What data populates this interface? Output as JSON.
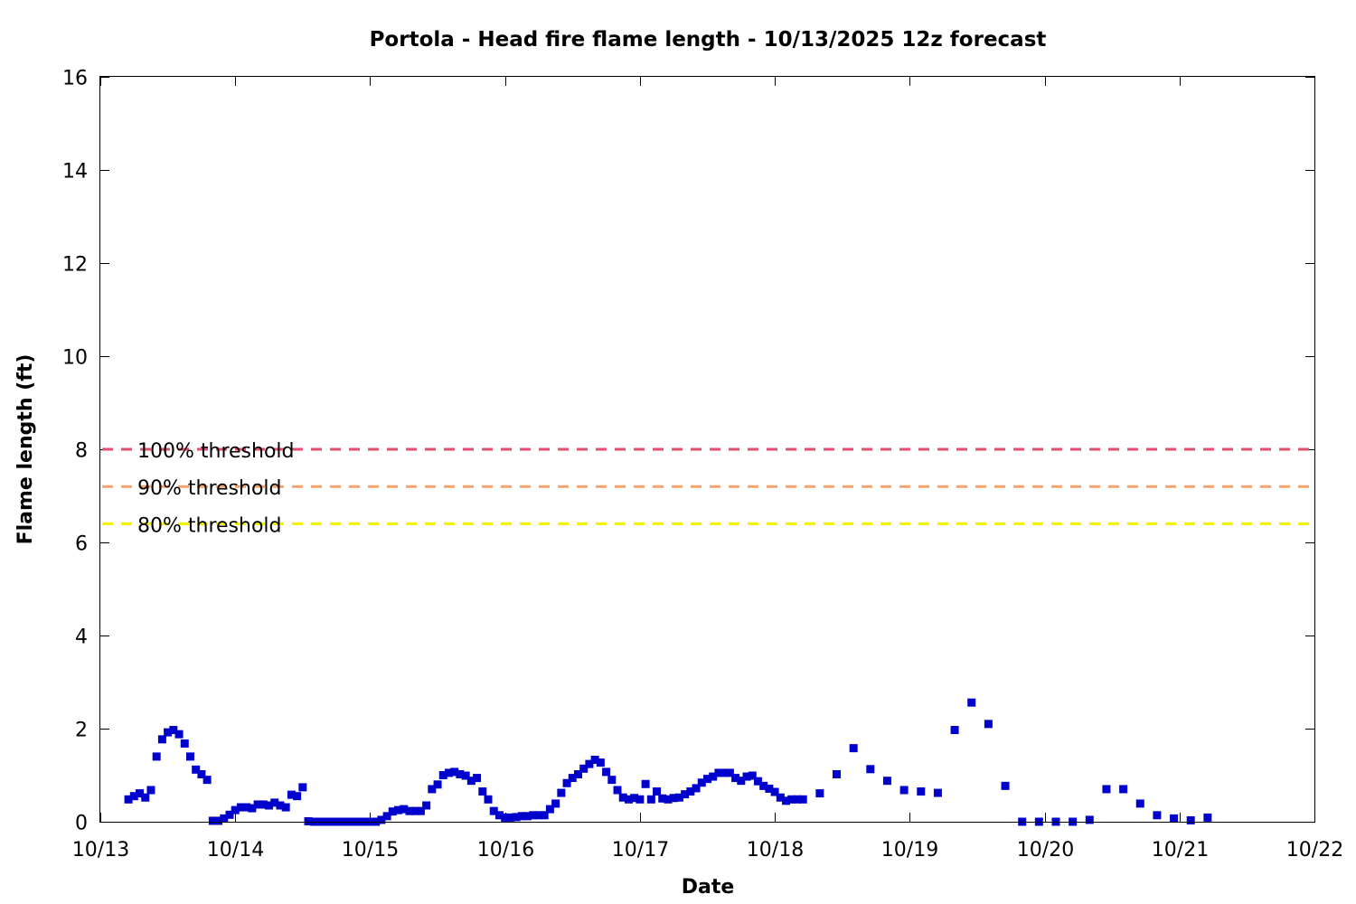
{
  "chart_data": {
    "type": "scatter",
    "title": "Portola - Head fire flame length - 10/13/2025 12z forecast",
    "xlabel": "Date",
    "ylabel": "Flame length (ft)",
    "xlim": [
      "10/13",
      "10/22"
    ],
    "ylim": [
      0,
      16
    ],
    "x_ticks": [
      "10/13",
      "10/14",
      "10/15",
      "10/16",
      "10/17",
      "10/18",
      "10/19",
      "10/20",
      "10/21",
      "10/22"
    ],
    "y_ticks": [
      0,
      2,
      4,
      6,
      8,
      10,
      12,
      14,
      16
    ],
    "grid": false,
    "series": [
      {
        "color": "#0000cc",
        "marker": "square",
        "points": [
          [
            "10/13 05:00",
            0.48
          ],
          [
            "10/13 06:00",
            0.55
          ],
          [
            "10/13 07:00",
            0.61
          ],
          [
            "10/13 08:00",
            0.52
          ],
          [
            "10/13 09:00",
            0.68
          ],
          [
            "10/13 10:00",
            1.4
          ],
          [
            "10/13 11:00",
            1.77
          ],
          [
            "10/13 12:00",
            1.92
          ],
          [
            "10/13 13:00",
            1.97
          ],
          [
            "10/13 14:00",
            1.88
          ],
          [
            "10/13 15:00",
            1.68
          ],
          [
            "10/13 16:00",
            1.4
          ],
          [
            "10/13 17:00",
            1.12
          ],
          [
            "10/13 18:00",
            1.02
          ],
          [
            "10/13 19:00",
            0.9
          ],
          [
            "10/13 20:00",
            0.02
          ],
          [
            "10/13 21:00",
            0.02
          ],
          [
            "10/13 22:00",
            0.07
          ],
          [
            "10/13 23:00",
            0.15
          ],
          [
            "10/14 00:00",
            0.25
          ],
          [
            "10/14 01:00",
            0.31
          ],
          [
            "10/14 02:00",
            0.31
          ],
          [
            "10/14 03:00",
            0.29
          ],
          [
            "10/14 04:00",
            0.37
          ],
          [
            "10/14 05:00",
            0.37
          ],
          [
            "10/14 06:00",
            0.35
          ],
          [
            "10/14 07:00",
            0.41
          ],
          [
            "10/14 08:00",
            0.35
          ],
          [
            "10/14 09:00",
            0.31
          ],
          [
            "10/14 10:00",
            0.58
          ],
          [
            "10/14 11:00",
            0.55
          ],
          [
            "10/14 12:00",
            0.74
          ],
          [
            "10/14 13:00",
            0.01
          ],
          [
            "10/14 14:00",
            0.0
          ],
          [
            "10/14 15:00",
            0.0
          ],
          [
            "10/14 16:00",
            0.0
          ],
          [
            "10/14 17:00",
            0.0
          ],
          [
            "10/14 18:00",
            0.0
          ],
          [
            "10/14 19:00",
            0.0
          ],
          [
            "10/14 20:00",
            0.0
          ],
          [
            "10/14 21:00",
            0.0
          ],
          [
            "10/14 22:00",
            0.0
          ],
          [
            "10/14 23:00",
            0.0
          ],
          [
            "10/15 00:00",
            0.0
          ],
          [
            "10/15 01:00",
            0.0
          ],
          [
            "10/15 02:00",
            0.04
          ],
          [
            "10/15 03:00",
            0.12
          ],
          [
            "10/15 04:00",
            0.22
          ],
          [
            "10/15 05:00",
            0.25
          ],
          [
            "10/15 06:00",
            0.27
          ],
          [
            "10/15 07:00",
            0.23
          ],
          [
            "10/15 08:00",
            0.23
          ],
          [
            "10/15 09:00",
            0.23
          ],
          [
            "10/15 10:00",
            0.35
          ],
          [
            "10/15 11:00",
            0.7
          ],
          [
            "10/15 12:00",
            0.8
          ],
          [
            "10/15 13:00",
            1.0
          ],
          [
            "10/15 14:00",
            1.05
          ],
          [
            "10/15 15:00",
            1.07
          ],
          [
            "10/15 16:00",
            1.02
          ],
          [
            "10/15 17:00",
            0.99
          ],
          [
            "10/15 18:00",
            0.88
          ],
          [
            "10/15 19:00",
            0.94
          ],
          [
            "10/15 20:00",
            0.65
          ],
          [
            "10/15 21:00",
            0.48
          ],
          [
            "10/15 22:00",
            0.23
          ],
          [
            "10/15 23:00",
            0.14
          ],
          [
            "10/16 00:00",
            0.09
          ],
          [
            "10/16 01:00",
            0.09
          ],
          [
            "10/16 02:00",
            0.1
          ],
          [
            "10/16 03:00",
            0.12
          ],
          [
            "10/16 04:00",
            0.12
          ],
          [
            "10/16 05:00",
            0.14
          ],
          [
            "10/16 06:00",
            0.14
          ],
          [
            "10/16 07:00",
            0.14
          ],
          [
            "10/16 08:00",
            0.27
          ],
          [
            "10/16 09:00",
            0.39
          ],
          [
            "10/16 10:00",
            0.62
          ],
          [
            "10/16 11:00",
            0.83
          ],
          [
            "10/16 12:00",
            0.94
          ],
          [
            "10/16 13:00",
            1.02
          ],
          [
            "10/16 14:00",
            1.14
          ],
          [
            "10/16 15:00",
            1.24
          ],
          [
            "10/16 16:00",
            1.33
          ],
          [
            "10/16 17:00",
            1.27
          ],
          [
            "10/16 18:00",
            1.07
          ],
          [
            "10/16 19:00",
            0.9
          ],
          [
            "10/16 20:00",
            0.68
          ],
          [
            "10/16 21:00",
            0.52
          ],
          [
            "10/16 22:00",
            0.48
          ],
          [
            "10/16 23:00",
            0.51
          ],
          [
            "10/17 00:00",
            0.48
          ],
          [
            "10/17 01:00",
            0.81
          ],
          [
            "10/17 02:00",
            0.48
          ],
          [
            "10/17 03:00",
            0.65
          ],
          [
            "10/17 04:00",
            0.5
          ],
          [
            "10/17 05:00",
            0.48
          ],
          [
            "10/17 06:00",
            0.51
          ],
          [
            "10/17 07:00",
            0.52
          ],
          [
            "10/17 08:00",
            0.59
          ],
          [
            "10/17 09:00",
            0.65
          ],
          [
            "10/17 10:00",
            0.72
          ],
          [
            "10/17 11:00",
            0.84
          ],
          [
            "10/17 12:00",
            0.92
          ],
          [
            "10/17 13:00",
            0.97
          ],
          [
            "10/17 14:00",
            1.05
          ],
          [
            "10/17 15:00",
            1.05
          ],
          [
            "10/17 16:00",
            1.05
          ],
          [
            "10/17 17:00",
            0.94
          ],
          [
            "10/17 18:00",
            0.88
          ],
          [
            "10/17 19:00",
            0.97
          ],
          [
            "10/17 20:00",
            0.99
          ],
          [
            "10/17 21:00",
            0.87
          ],
          [
            "10/17 22:00",
            0.77
          ],
          [
            "10/17 23:00",
            0.71
          ],
          [
            "10/18 00:00",
            0.64
          ],
          [
            "10/18 01:00",
            0.52
          ],
          [
            "10/18 02:00",
            0.45
          ],
          [
            "10/18 03:00",
            0.48
          ],
          [
            "10/18 04:00",
            0.48
          ],
          [
            "10/18 05:00",
            0.48
          ],
          [
            "10/18 08:00",
            0.61
          ],
          [
            "10/18 11:00",
            1.02
          ],
          [
            "10/18 14:00",
            1.58
          ],
          [
            "10/18 17:00",
            1.13
          ],
          [
            "10/18 20:00",
            0.88
          ],
          [
            "10/18 23:00",
            0.68
          ],
          [
            "10/19 02:00",
            0.65
          ],
          [
            "10/19 05:00",
            0.62
          ],
          [
            "10/19 08:00",
            1.97
          ],
          [
            "10/19 11:00",
            2.56
          ],
          [
            "10/19 14:00",
            2.1
          ],
          [
            "10/19 17:00",
            0.77
          ],
          [
            "10/19 20:00",
            0.0
          ],
          [
            "10/19 23:00",
            0.0
          ],
          [
            "10/20 02:00",
            0.0
          ],
          [
            "10/20 05:00",
            0.0
          ],
          [
            "10/20 08:00",
            0.04
          ],
          [
            "10/20 11:00",
            0.7
          ],
          [
            "10/20 14:00",
            0.7
          ],
          [
            "10/20 17:00",
            0.39
          ],
          [
            "10/20 20:00",
            0.14
          ],
          [
            "10/20 23:00",
            0.07
          ],
          [
            "10/21 02:00",
            0.03
          ],
          [
            "10/21 05:00",
            0.09
          ]
        ]
      }
    ],
    "thresholds": [
      {
        "label": "100% threshold",
        "value": 8.0,
        "color": "#e0506e",
        "style": "dashed"
      },
      {
        "label": "90% threshold",
        "value": 7.2,
        "color": "#f4a46a",
        "style": "dashed"
      },
      {
        "label": "80% threshold",
        "value": 6.4,
        "color": "#f2f200",
        "style": "dashed"
      }
    ]
  }
}
